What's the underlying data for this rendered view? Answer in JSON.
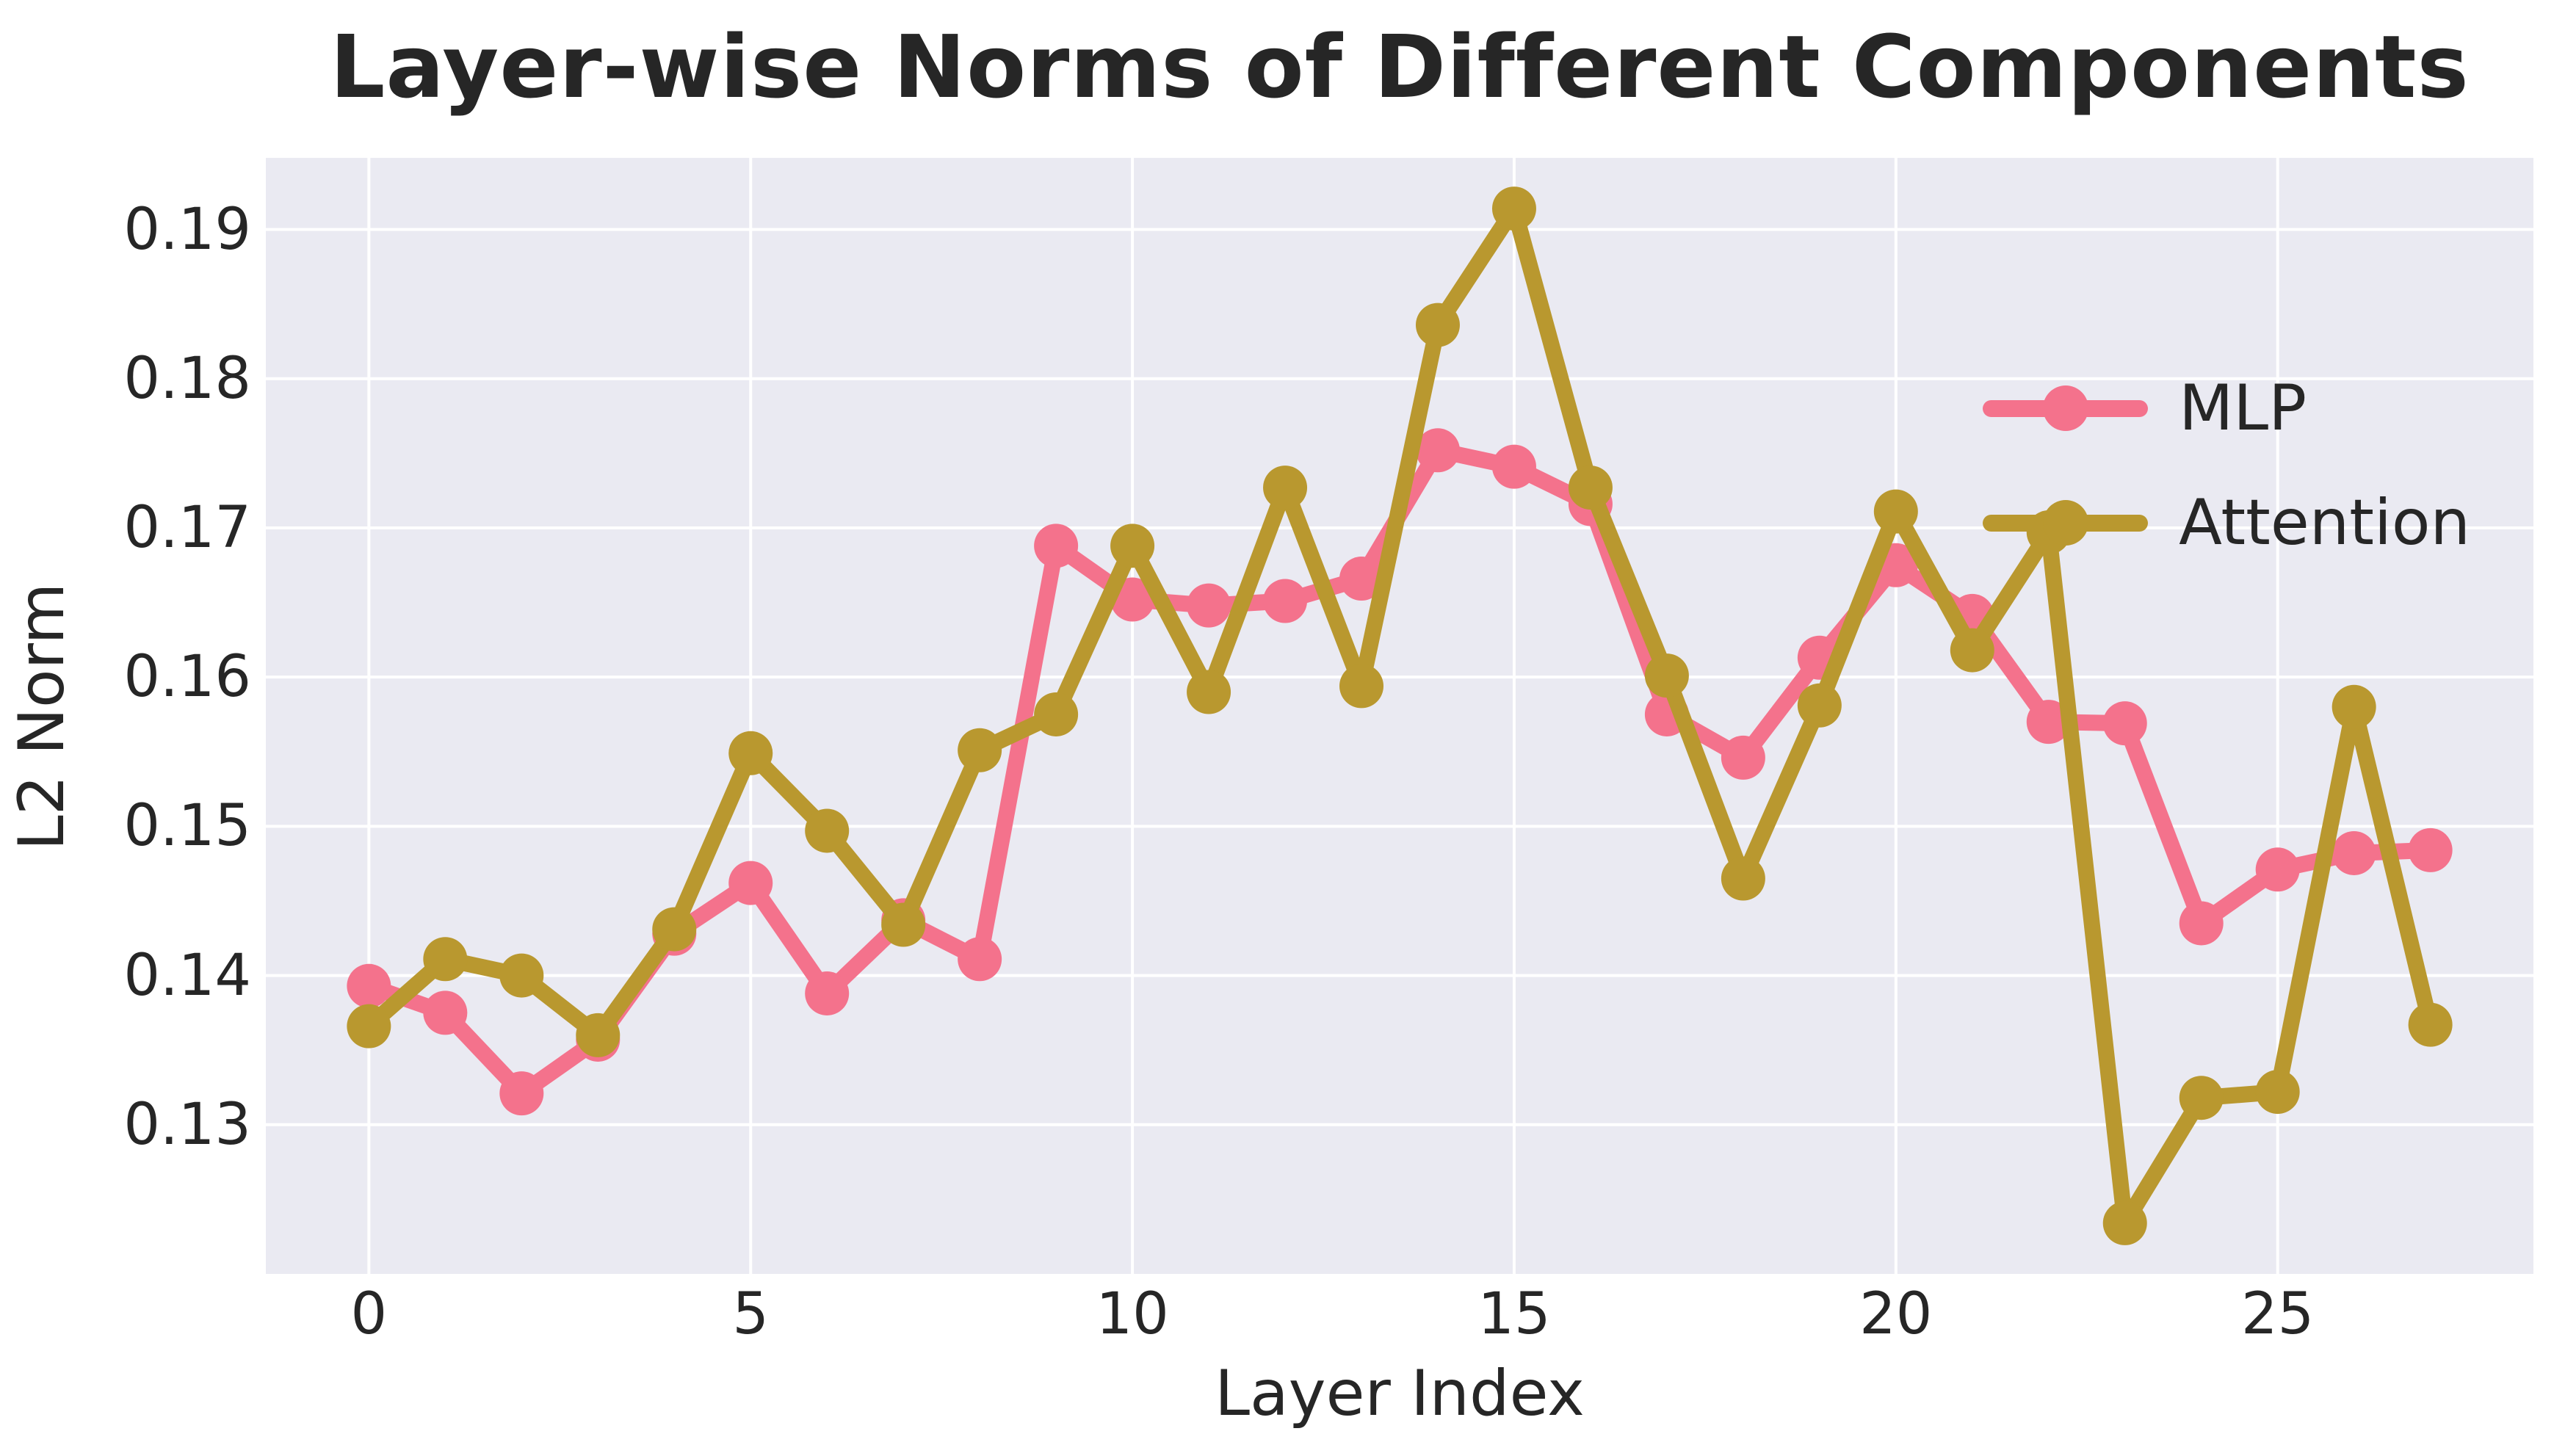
{
  "figure": {
    "title": "Layer-wise Norms of Different Components"
  },
  "chart_data": {
    "type": "line",
    "title": "Layer-wise Norms of Different Components",
    "xlabel": "Layer Index",
    "ylabel": "L2 Norm",
    "x": [
      0,
      1,
      2,
      3,
      4,
      5,
      6,
      7,
      8,
      9,
      10,
      11,
      12,
      13,
      14,
      15,
      16,
      17,
      18,
      19,
      20,
      21,
      22,
      23,
      24,
      25,
      26,
      27
    ],
    "series": [
      {
        "name": "MLP",
        "color": "#F4728C",
        "values": [
          0.1393,
          0.1375,
          0.1321,
          0.1357,
          0.1428,
          0.1462,
          0.1388,
          0.1437,
          0.1411,
          0.1688,
          0.1652,
          0.1648,
          0.1651,
          0.1666,
          0.1752,
          0.1741,
          0.1716,
          0.1575,
          0.1546,
          0.1613,
          0.1675,
          0.1641,
          0.157,
          0.1569,
          0.1435,
          0.1471,
          0.1482,
          0.1484
        ]
      },
      {
        "name": "Attention",
        "color": "#B9982F",
        "values": [
          0.1366,
          0.1411,
          0.14,
          0.136,
          0.1431,
          0.1549,
          0.1497,
          0.1434,
          0.1551,
          0.1575,
          0.1688,
          0.159,
          0.1727,
          0.1594,
          0.1836,
          0.1914,
          0.1727,
          0.1601,
          0.1465,
          0.1581,
          0.1711,
          0.1618,
          0.1697,
          0.1234,
          0.1318,
          0.1322,
          0.158,
          0.1367
        ]
      }
    ],
    "x_ticks": [
      0,
      5,
      10,
      15,
      20,
      25
    ],
    "y_ticks": [
      0.19,
      0.18,
      0.17,
      0.16,
      0.15,
      0.14,
      0.13
    ],
    "xlim": [
      -1.35,
      28.35
    ],
    "ylim": [
      0.12,
      0.1948
    ],
    "grid": true,
    "legend_position": "upper right",
    "plot_background": "#EAEAF2",
    "grid_color": "#FFFFFF",
    "text_color": "#262626",
    "line_width": 22,
    "marker_radius": 30
  }
}
